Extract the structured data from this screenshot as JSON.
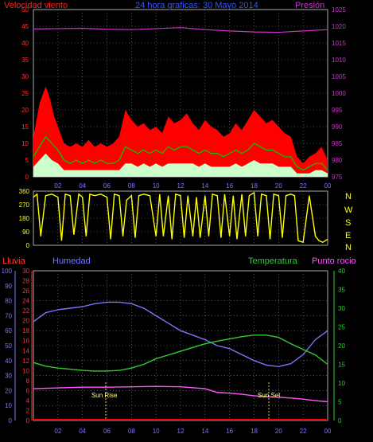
{
  "header": {
    "wind_label": "Velocidad viento",
    "title": "24 hora graficas:  30 Mayo 2014",
    "pressure_label": "Presión"
  },
  "compass": [
    "N",
    "W",
    "S",
    "E",
    "N"
  ],
  "lower_header": {
    "rain_label": "Lluvia",
    "humidity_label": "Humedad",
    "temperature_label": "Temperatura",
    "dewpoint_label": "Punto rocio"
  },
  "annotations": {
    "sunrise": "Sun Rise",
    "sunset": "Sun Set"
  },
  "colors": {
    "wind_gust": "#ff0000",
    "wind_avg": "#00cc00",
    "wind_speed": "#ccffcc",
    "pressure": "#cc33cc",
    "direction": "#ffff00",
    "rain": "#ff0000",
    "humidity": "#7777ff",
    "temperature": "#33cc33",
    "dewpoint": "#ff55ff",
    "grid": "#888888",
    "axis_rain": "#ff3333",
    "axis_hum": "#7777ff",
    "axis_temp": "#33cc33",
    "axis_press": "#cc33cc"
  },
  "chart_data": [
    {
      "type": "area",
      "x_ticks": [
        "02",
        "04",
        "06",
        "08",
        "10",
        "12",
        "14",
        "16",
        "18",
        "20",
        "22",
        "00"
      ],
      "wind_axis": [
        "0",
        "5",
        "10",
        "15",
        "20",
        "25",
        "30",
        "35",
        "40",
        "45",
        "50"
      ],
      "pressure_axis": [
        "975",
        "980",
        "985",
        "990",
        "995",
        "1000",
        "1005",
        "1010",
        "1015",
        "1020",
        "1025"
      ],
      "ylim_wind": [
        0,
        50
      ],
      "ylim_pressure": [
        975,
        1025
      ],
      "series": {
        "gust": [
          [
            0,
            12
          ],
          [
            0.5,
            22
          ],
          [
            1,
            27
          ],
          [
            1.3,
            24
          ],
          [
            1.7,
            18
          ],
          [
            2,
            15
          ],
          [
            2.5,
            10
          ],
          [
            3,
            9
          ],
          [
            3.5,
            10
          ],
          [
            4,
            9
          ],
          [
            4.5,
            11
          ],
          [
            5,
            9
          ],
          [
            5.5,
            10
          ],
          [
            6,
            9
          ],
          [
            6.5,
            10
          ],
          [
            7,
            12
          ],
          [
            7.5,
            20
          ],
          [
            8,
            17
          ],
          [
            8.5,
            15
          ],
          [
            9,
            16
          ],
          [
            9.5,
            14
          ],
          [
            10,
            15
          ],
          [
            10.5,
            13
          ],
          [
            11,
            18
          ],
          [
            11.5,
            16
          ],
          [
            12,
            17
          ],
          [
            12.5,
            19
          ],
          [
            13,
            16
          ],
          [
            13.5,
            14
          ],
          [
            14,
            17
          ],
          [
            14.5,
            15
          ],
          [
            15,
            14
          ],
          [
            15.5,
            12
          ],
          [
            16,
            13
          ],
          [
            16.5,
            16
          ],
          [
            17,
            14
          ],
          [
            17.5,
            17
          ],
          [
            18,
            20
          ],
          [
            18.5,
            18
          ],
          [
            19,
            16
          ],
          [
            19.5,
            17
          ],
          [
            20,
            15
          ],
          [
            20.5,
            13
          ],
          [
            21,
            12
          ],
          [
            21.5,
            6
          ],
          [
            22,
            4
          ],
          [
            22.5,
            6
          ],
          [
            23,
            7
          ],
          [
            23.5,
            9
          ],
          [
            24,
            5
          ]
        ],
        "avg": [
          [
            0,
            6
          ],
          [
            0.5,
            9
          ],
          [
            1,
            12
          ],
          [
            1.5,
            10
          ],
          [
            2,
            8
          ],
          [
            2.5,
            5
          ],
          [
            3,
            4
          ],
          [
            3.5,
            5
          ],
          [
            4,
            4
          ],
          [
            4.5,
            5
          ],
          [
            5,
            4
          ],
          [
            5.5,
            5
          ],
          [
            6,
            4
          ],
          [
            6.5,
            4
          ],
          [
            7,
            5
          ],
          [
            7.5,
            9
          ],
          [
            8,
            8
          ],
          [
            8.5,
            7
          ],
          [
            9,
            8
          ],
          [
            9.5,
            7
          ],
          [
            10,
            8
          ],
          [
            10.5,
            7
          ],
          [
            11,
            9
          ],
          [
            11.5,
            8
          ],
          [
            12,
            9
          ],
          [
            12.5,
            9
          ],
          [
            13,
            8
          ],
          [
            13.5,
            7
          ],
          [
            14,
            8
          ],
          [
            14.5,
            7
          ],
          [
            15,
            7
          ],
          [
            15.5,
            6
          ],
          [
            16,
            7
          ],
          [
            16.5,
            8
          ],
          [
            17,
            7
          ],
          [
            17.5,
            8
          ],
          [
            18,
            10
          ],
          [
            18.5,
            9
          ],
          [
            19,
            8
          ],
          [
            19.5,
            8
          ],
          [
            20,
            7
          ],
          [
            20.5,
            6
          ],
          [
            21,
            6
          ],
          [
            21.5,
            3
          ],
          [
            22,
            2
          ],
          [
            22.5,
            3
          ],
          [
            23,
            4
          ],
          [
            23.5,
            4
          ],
          [
            24,
            2
          ]
        ],
        "speed": [
          [
            0,
            3
          ],
          [
            0.5,
            5
          ],
          [
            1,
            7
          ],
          [
            1.5,
            5
          ],
          [
            2,
            4
          ],
          [
            2.5,
            2
          ],
          [
            3,
            2
          ],
          [
            3.5,
            2
          ],
          [
            4,
            2
          ],
          [
            4.5,
            2
          ],
          [
            5,
            2
          ],
          [
            5.5,
            2
          ],
          [
            6,
            2
          ],
          [
            6.5,
            2
          ],
          [
            7,
            2
          ],
          [
            7.5,
            4
          ],
          [
            8,
            4
          ],
          [
            8.5,
            3
          ],
          [
            9,
            4
          ],
          [
            9.5,
            3
          ],
          [
            10,
            4
          ],
          [
            10.5,
            3
          ],
          [
            11,
            4
          ],
          [
            11.5,
            4
          ],
          [
            12,
            4
          ],
          [
            12.5,
            4
          ],
          [
            13,
            4
          ],
          [
            13.5,
            3
          ],
          [
            14,
            4
          ],
          [
            14.5,
            3
          ],
          [
            15,
            3
          ],
          [
            15.5,
            3
          ],
          [
            16,
            3
          ],
          [
            16.5,
            4
          ],
          [
            17,
            3
          ],
          [
            17.5,
            4
          ],
          [
            18,
            5
          ],
          [
            18.5,
            4
          ],
          [
            19,
            4
          ],
          [
            19.5,
            4
          ],
          [
            20,
            3
          ],
          [
            20.5,
            3
          ],
          [
            21,
            3
          ],
          [
            21.5,
            1
          ],
          [
            22,
            1
          ],
          [
            22.5,
            1
          ],
          [
            23,
            2
          ],
          [
            23.5,
            2
          ],
          [
            24,
            1
          ]
        ],
        "pressure": [
          [
            0,
            1019.2
          ],
          [
            2,
            1019.3
          ],
          [
            4,
            1019.4
          ],
          [
            6,
            1019.1
          ],
          [
            8,
            1019.0
          ],
          [
            10,
            1019.3
          ],
          [
            12,
            1019.6
          ],
          [
            14,
            1019.0
          ],
          [
            16,
            1018.6
          ],
          [
            18,
            1018.3
          ],
          [
            20,
            1018.2
          ],
          [
            22,
            1018.6
          ],
          [
            24,
            1019.0
          ]
        ]
      }
    },
    {
      "type": "line",
      "y_axis": [
        "0",
        "90",
        "180",
        "270",
        "360"
      ],
      "ylim": [
        0,
        360
      ],
      "series": {
        "direction": [
          [
            0,
            320
          ],
          [
            0.3,
            340
          ],
          [
            0.6,
            60
          ],
          [
            1,
            330
          ],
          [
            1.5,
            340
          ],
          [
            2,
            320
          ],
          [
            2.3,
            30
          ],
          [
            2.6,
            340
          ],
          [
            3,
            330
          ],
          [
            3.3,
            70
          ],
          [
            3.7,
            340
          ],
          [
            4,
            320
          ],
          [
            4.3,
            60
          ],
          [
            4.6,
            340
          ],
          [
            5,
            330
          ],
          [
            5.5,
            340
          ],
          [
            6,
            320
          ],
          [
            6.3,
            40
          ],
          [
            6.6,
            340
          ],
          [
            7,
            330
          ],
          [
            7.3,
            60
          ],
          [
            7.6,
            300
          ],
          [
            8,
            330
          ],
          [
            8.3,
            50
          ],
          [
            8.6,
            330
          ],
          [
            9,
            340
          ],
          [
            9.5,
            330
          ],
          [
            10,
            60
          ],
          [
            10.3,
            340
          ],
          [
            10.6,
            60
          ],
          [
            11,
            330
          ],
          [
            11.3,
            40
          ],
          [
            11.6,
            340
          ],
          [
            12,
            330
          ],
          [
            12.3,
            50
          ],
          [
            12.6,
            330
          ],
          [
            13,
            60
          ],
          [
            13.3,
            320
          ],
          [
            13.6,
            50
          ],
          [
            14,
            330
          ],
          [
            14.3,
            60
          ],
          [
            14.6,
            340
          ],
          [
            15,
            330
          ],
          [
            15.3,
            50
          ],
          [
            15.6,
            340
          ],
          [
            16,
            60
          ],
          [
            16.3,
            330
          ],
          [
            16.6,
            40
          ],
          [
            17,
            340
          ],
          [
            17.3,
            60
          ],
          [
            17.6,
            330
          ],
          [
            18,
            350
          ],
          [
            18.3,
            60
          ],
          [
            18.6,
            340
          ],
          [
            19,
            330
          ],
          [
            19.3,
            40
          ],
          [
            19.6,
            340
          ],
          [
            20,
            330
          ],
          [
            20.3,
            50
          ],
          [
            20.6,
            330
          ],
          [
            21,
            340
          ],
          [
            21.3,
            330
          ],
          [
            21.6,
            30
          ],
          [
            22,
            20
          ],
          [
            22.5,
            330
          ],
          [
            23,
            60
          ],
          [
            23.3,
            30
          ],
          [
            23.6,
            20
          ],
          [
            24,
            40
          ]
        ]
      }
    },
    {
      "type": "line",
      "rain_axis": [
        "0",
        "2",
        "4",
        "6",
        "8",
        "10",
        "12",
        "14",
        "16",
        "18",
        "20",
        "22",
        "24",
        "26",
        "28",
        "30"
      ],
      "humidity_axis": [
        "0",
        "10",
        "20",
        "30",
        "40",
        "50",
        "60",
        "70",
        "80",
        "90",
        "100"
      ],
      "temp_axis": [
        "0",
        "5",
        "10",
        "15",
        "20",
        "25",
        "30",
        "35",
        "40"
      ],
      "ylim_humidity": [
        0,
        100
      ],
      "ylim_temp": [
        0,
        40
      ],
      "sunrise_hour": 5.9,
      "sunset_hour": 19.2,
      "series": {
        "rain": [
          [
            0,
            0
          ],
          [
            24,
            0
          ]
        ],
        "humidity": [
          [
            0,
            66
          ],
          [
            1,
            72
          ],
          [
            2,
            74
          ],
          [
            3,
            75
          ],
          [
            4,
            76
          ],
          [
            5,
            78
          ],
          [
            6,
            79
          ],
          [
            7,
            79
          ],
          [
            8,
            78
          ],
          [
            9,
            75
          ],
          [
            10,
            70
          ],
          [
            11,
            65
          ],
          [
            12,
            60
          ],
          [
            13,
            57
          ],
          [
            14,
            54
          ],
          [
            15,
            50
          ],
          [
            16,
            48
          ],
          [
            17,
            44
          ],
          [
            18,
            40
          ],
          [
            19,
            37
          ],
          [
            20,
            36
          ],
          [
            21,
            38
          ],
          [
            22,
            44
          ],
          [
            23,
            54
          ],
          [
            24,
            60
          ]
        ],
        "temperature": [
          [
            0,
            15.5
          ],
          [
            1,
            14.5
          ],
          [
            2,
            14.0
          ],
          [
            3,
            13.7
          ],
          [
            4,
            13.4
          ],
          [
            5,
            13.2
          ],
          [
            6,
            13.2
          ],
          [
            7,
            13.4
          ],
          [
            8,
            14.0
          ],
          [
            9,
            15.0
          ],
          [
            10,
            16.5
          ],
          [
            11,
            17.5
          ],
          [
            12,
            18.5
          ],
          [
            13,
            19.5
          ],
          [
            14,
            20.5
          ],
          [
            15,
            21.2
          ],
          [
            16,
            21.8
          ],
          [
            17,
            22.4
          ],
          [
            18,
            22.8
          ],
          [
            19,
            22.8
          ],
          [
            20,
            22.2
          ],
          [
            21,
            20.5
          ],
          [
            22,
            19.0
          ],
          [
            23,
            17.5
          ],
          [
            24,
            15.0
          ]
        ],
        "dewpoint": [
          [
            0,
            8.5
          ],
          [
            2,
            8.7
          ],
          [
            4,
            8.9
          ],
          [
            6,
            8.9
          ],
          [
            8,
            9.0
          ],
          [
            10,
            9.1
          ],
          [
            12,
            9.0
          ],
          [
            14,
            8.5
          ],
          [
            15,
            7.5
          ],
          [
            16,
            7.3
          ],
          [
            17,
            7.0
          ],
          [
            18,
            6.6
          ],
          [
            19,
            6.4
          ],
          [
            20,
            6.2
          ],
          [
            21,
            6.0
          ],
          [
            22,
            5.7
          ],
          [
            23,
            5.3
          ],
          [
            24,
            5.0
          ]
        ]
      }
    }
  ]
}
